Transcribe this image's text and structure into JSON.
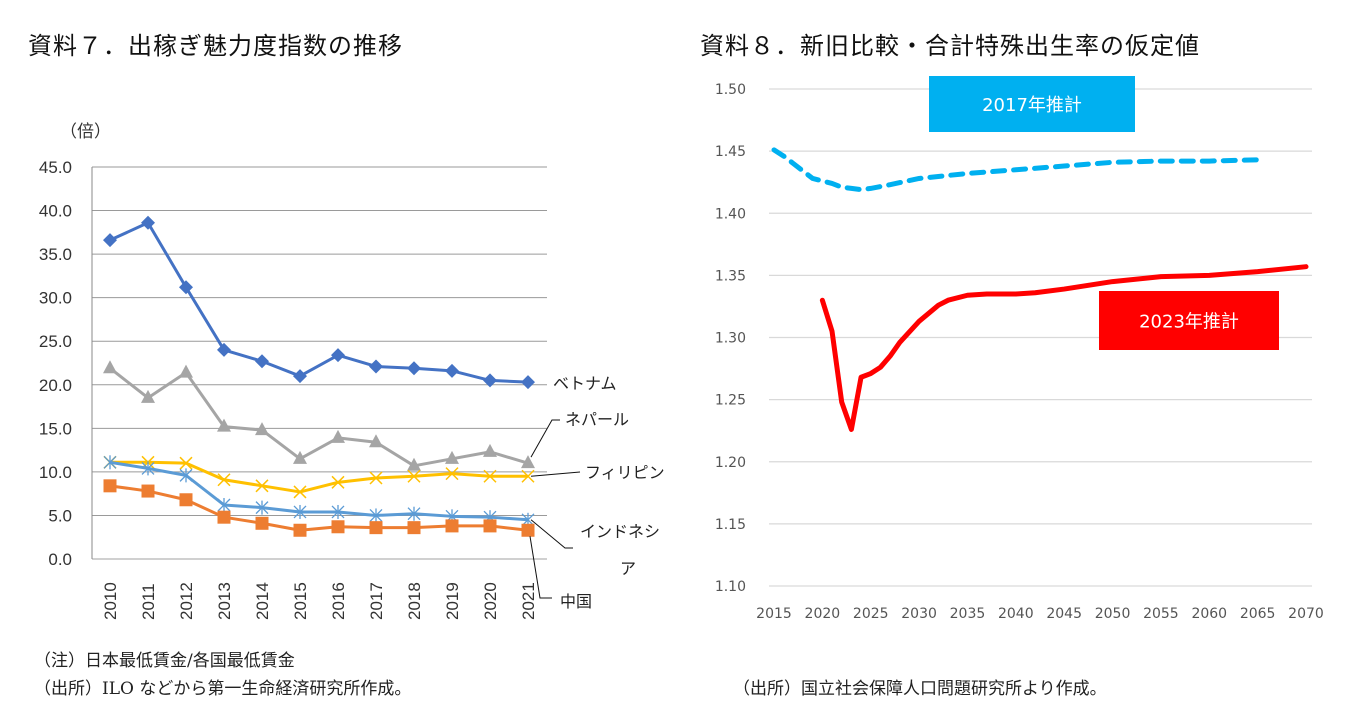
{
  "left_title": "資料７．出稼ぎ魅力度指数の推移",
  "right_title": "資料８．新旧比較・合計特殊出生率の仮定値",
  "left_notes": [
    "（注）日本最低賃金/各国最低賃金",
    "（出所）ILO などから第一生命経済研究所作成。"
  ],
  "right_notes": [
    "（出所）国立社会保障人口問題研究所より作成。"
  ],
  "chart_data": [
    {
      "type": "line",
      "title": "出稼ぎ魅力度指数の推移",
      "ylabel": "（倍）",
      "xlabel": "",
      "ylim": [
        0,
        45
      ],
      "yticks": [
        "0.0",
        "5.0",
        "10.0",
        "15.0",
        "20.0",
        "25.0",
        "30.0",
        "35.0",
        "40.0",
        "45.0"
      ],
      "grid": true,
      "categories": [
        "2010",
        "2011",
        "2012",
        "2013",
        "2014",
        "2015",
        "2016",
        "2017",
        "2018",
        "2019",
        "2020",
        "2021"
      ],
      "series": [
        {
          "name": "ベトナム",
          "color": "#4472C4",
          "marker": "diamond",
          "values": [
            36.6,
            38.6,
            31.2,
            24.0,
            22.7,
            21.0,
            23.4,
            22.1,
            21.9,
            21.6,
            20.5,
            20.3
          ]
        },
        {
          "name": "ネパール",
          "color": "#A5A5A5",
          "marker": "triangle",
          "values": [
            21.9,
            18.5,
            21.4,
            15.2,
            14.8,
            11.5,
            13.9,
            13.4,
            10.7,
            11.5,
            12.3,
            11.0
          ]
        },
        {
          "name": "フィリピン",
          "color": "#FFC000",
          "marker": "x",
          "values": [
            11.1,
            11.1,
            11.0,
            9.1,
            8.4,
            7.7,
            8.8,
            9.3,
            9.5,
            9.8,
            9.5,
            9.5
          ]
        },
        {
          "name": "インドネシア",
          "color": "#5B9BD5",
          "marker": "asterisk",
          "values": [
            11.1,
            10.4,
            9.6,
            6.2,
            5.9,
            5.4,
            5.4,
            5.0,
            5.2,
            4.9,
            4.8,
            4.5
          ]
        },
        {
          "name": "中国",
          "color": "#ED7D31",
          "marker": "square",
          "values": [
            8.4,
            7.8,
            6.8,
            4.8,
            4.1,
            3.3,
            3.7,
            3.6,
            3.6,
            3.8,
            3.8,
            3.3
          ]
        }
      ],
      "series_labels": [
        "ベトナム",
        "ネパール",
        "フィリピン",
        "インドネシア",
        "中国"
      ]
    },
    {
      "type": "line",
      "title": "新旧比較・合計特殊出生率の仮定値",
      "xlabel": "",
      "ylabel": "",
      "ylim": [
        1.1,
        1.5
      ],
      "xlim": [
        2015,
        2070
      ],
      "yticks": [
        "1.10",
        "1.15",
        "1.20",
        "1.25",
        "1.30",
        "1.35",
        "1.40",
        "1.45",
        "1.50"
      ],
      "xticks": [
        "2015",
        "2020",
        "2025",
        "2030",
        "2035",
        "2040",
        "2045",
        "2050",
        "2055",
        "2060",
        "2065",
        "2070"
      ],
      "grid": true,
      "series": [
        {
          "name": "2017年推計",
          "color": "#00B0F0",
          "style": "dashed",
          "x": [
            2015,
            2016,
            2017,
            2018,
            2019,
            2020,
            2021,
            2022,
            2023,
            2024,
            2025,
            2027,
            2030,
            2035,
            2040,
            2045,
            2050,
            2055,
            2060,
            2065
          ],
          "y": [
            1.451,
            1.446,
            1.44,
            1.434,
            1.428,
            1.426,
            1.424,
            1.421,
            1.42,
            1.419,
            1.42,
            1.423,
            1.428,
            1.432,
            1.435,
            1.438,
            1.441,
            1.442,
            1.442,
            1.443
          ]
        },
        {
          "name": "2023年推計",
          "color": "#FF0000",
          "style": "solid",
          "x": [
            2020,
            2021,
            2022,
            2023,
            2024,
            2025,
            2026,
            2027,
            2028,
            2030,
            2032,
            2033,
            2035,
            2037,
            2040,
            2042,
            2045,
            2050,
            2055,
            2060,
            2065,
            2070
          ],
          "y": [
            1.33,
            1.305,
            1.248,
            1.226,
            1.268,
            1.271,
            1.276,
            1.285,
            1.296,
            1.313,
            1.326,
            1.33,
            1.334,
            1.335,
            1.335,
            1.336,
            1.339,
            1.345,
            1.349,
            1.35,
            1.353,
            1.357
          ]
        }
      ],
      "box_labels": [
        {
          "text": "2017年推計",
          "color": "#00B0F0"
        },
        {
          "text": "2023年推計",
          "color": "#FF0000"
        }
      ]
    }
  ]
}
